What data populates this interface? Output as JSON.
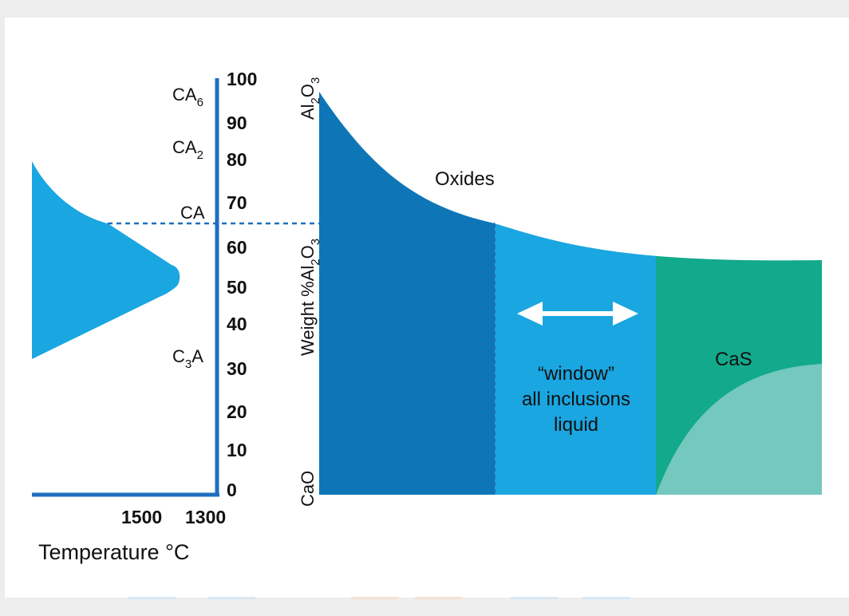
{
  "left_panel": {
    "x_tick_labels": [
      "1500",
      "1300"
    ],
    "x_axis_title": "Temperature °C",
    "y_tick_labels": [
      "100",
      "90",
      "80",
      "70",
      "60",
      "50",
      "40",
      "30",
      "20",
      "10",
      "0"
    ],
    "phases": [
      {
        "main": "CA",
        "sub": "6"
      },
      {
        "main": "CA",
        "sub": "2"
      },
      {
        "main": "CA",
        "sub": ""
      },
      {
        "main": "C",
        "sub": "3",
        "suffix": "A"
      }
    ],
    "colors": {
      "axis": "#1f6fbf",
      "liquidus_fill": "#1aa6e0",
      "dashed": "#1f6fbf"
    }
  },
  "right_panel": {
    "y_axis_title": {
      "prefix": "Weight %Al",
      "sub1": "2",
      "mid": "O",
      "sub2": "3"
    },
    "top_label": {
      "a": "Al",
      "s1": "2",
      "b": "O",
      "s2": "3"
    },
    "bottom_label": "CaO",
    "region_labels": {
      "oxides": "Oxides",
      "window": [
        "“window”",
        "all inclusions",
        "liquid"
      ],
      "cas": "CaS"
    },
    "colors": {
      "oxides_dark": "#0e76b6",
      "window_light": "#1aa6e0",
      "cas_dark": "#12a98d",
      "cas_light": "#74c8be",
      "arrow": "#ffffff"
    }
  }
}
